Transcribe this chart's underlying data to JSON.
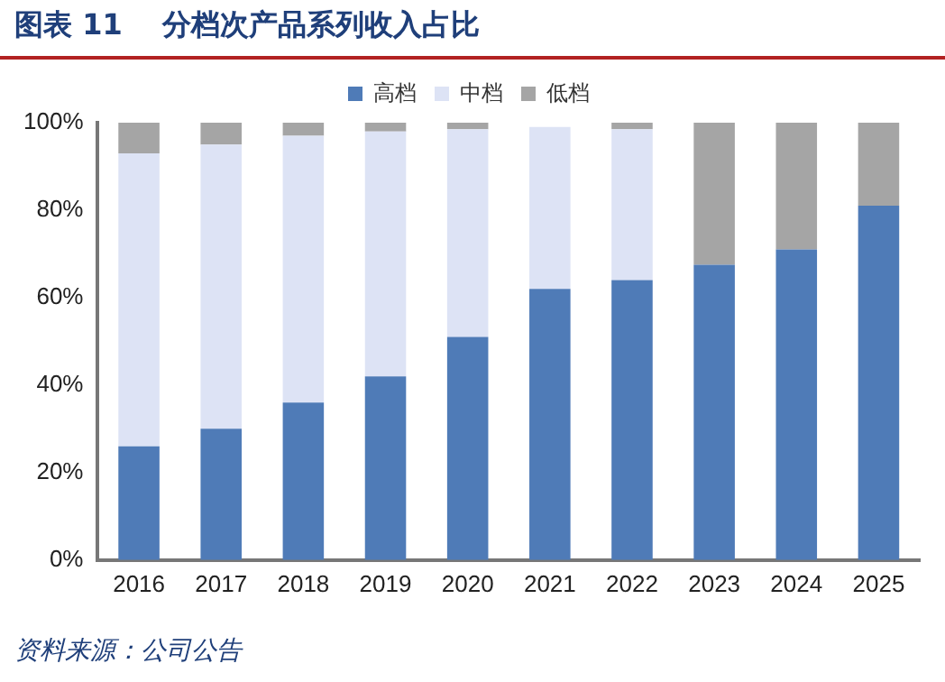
{
  "chart_data": {
    "type": "bar",
    "title": "图表 11    分档次产品系列收入占比",
    "stacked": true,
    "categories": [
      "2016",
      "2017",
      "2018",
      "2019",
      "2020",
      "2021",
      "2022",
      "2023",
      "2024",
      "2025"
    ],
    "series": [
      {
        "name": "高档",
        "color": "#4f7bb7",
        "values": [
          26,
          30,
          36,
          42,
          51,
          62,
          64,
          67.5,
          71,
          81
        ]
      },
      {
        "name": "中档",
        "color": "#dde3f5",
        "values": [
          67,
          65,
          61,
          56,
          47.5,
          37,
          34.5,
          0,
          0,
          0
        ]
      },
      {
        "name": "低档",
        "color": "#a5a5a5",
        "values": [
          7,
          5,
          3,
          2,
          1.5,
          0,
          1.5,
          32.5,
          29,
          19
        ]
      }
    ],
    "ylim": [
      0,
      100
    ],
    "yticks": [
      {
        "value": 0,
        "label": "0%"
      },
      {
        "value": 20,
        "label": "20%"
      },
      {
        "value": 40,
        "label": "40%"
      },
      {
        "value": 60,
        "label": "60%"
      },
      {
        "value": 80,
        "label": "80%"
      },
      {
        "value": 100,
        "label": "100%"
      }
    ],
    "grid": false,
    "legend": "top",
    "annotations": [
      "资料来源：公司公告"
    ]
  }
}
